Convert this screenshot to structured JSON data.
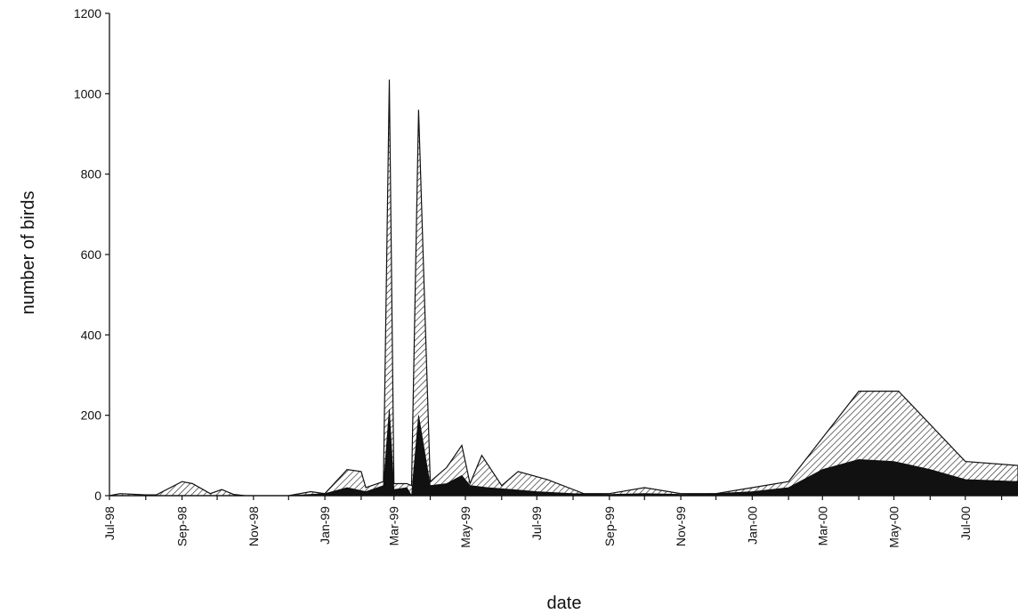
{
  "chart_data": {
    "type": "area",
    "title": "",
    "xlabel": "date",
    "ylabel": "number of birds",
    "ylim": [
      0,
      1200
    ],
    "y_ticks": [
      "0",
      "200",
      "400",
      "600",
      "800",
      "1000",
      "1200"
    ],
    "x_ticks": [
      "Jul-98",
      "Sep-98",
      "Nov-98",
      "Jan-99",
      "Mar-99",
      "May-99",
      "Jul-99",
      "Sep-99",
      "Nov-99",
      "Jan-00",
      "Mar-00",
      "May-00",
      "Jul-00"
    ],
    "x_range": [
      "1998-07-01",
      "2000-08-15"
    ],
    "stacked": true,
    "grid": false,
    "series": [
      {
        "fill": "black",
        "points": [
          [
            "1998-07-01",
            0
          ],
          [
            "1998-08-01",
            0
          ],
          [
            "1998-09-01",
            0
          ],
          [
            "1998-10-01",
            0
          ],
          [
            "1998-11-01",
            0
          ],
          [
            "1998-12-01",
            0
          ],
          [
            "1999-01-01",
            5
          ],
          [
            "1999-01-20",
            20
          ],
          [
            "1999-02-05",
            10
          ],
          [
            "1999-02-20",
            25
          ],
          [
            "1999-02-25",
            215
          ],
          [
            "1999-03-01",
            15
          ],
          [
            "1999-03-12",
            20
          ],
          [
            "1999-03-16",
            0
          ],
          [
            "1999-03-22",
            200
          ],
          [
            "1999-04-01",
            25
          ],
          [
            "1999-04-15",
            30
          ],
          [
            "1999-04-28",
            50
          ],
          [
            "1999-05-05",
            25
          ],
          [
            "1999-05-20",
            20
          ],
          [
            "1999-06-10",
            15
          ],
          [
            "1999-07-01",
            10
          ],
          [
            "1999-08-01",
            5
          ],
          [
            "1999-09-01",
            3
          ],
          [
            "1999-10-01",
            5
          ],
          [
            "1999-11-01",
            3
          ],
          [
            "1999-12-01",
            5
          ],
          [
            "2000-01-01",
            10
          ],
          [
            "2000-02-01",
            20
          ],
          [
            "2000-03-01",
            65
          ],
          [
            "2000-04-01",
            90
          ],
          [
            "2000-05-01",
            85
          ],
          [
            "2000-06-01",
            65
          ],
          [
            "2000-07-01",
            40
          ],
          [
            "2000-08-15",
            35
          ]
        ]
      },
      {
        "fill": "hatched",
        "points": [
          [
            "1998-07-01",
            0
          ],
          [
            "1998-07-10",
            5
          ],
          [
            "1998-08-01",
            2
          ],
          [
            "1998-08-10",
            2
          ],
          [
            "1998-09-01",
            35
          ],
          [
            "1998-09-10",
            30
          ],
          [
            "1998-09-25",
            5
          ],
          [
            "1998-10-05",
            15
          ],
          [
            "1998-10-15",
            3
          ],
          [
            "1998-10-25",
            0
          ],
          [
            "1998-11-01",
            0
          ],
          [
            "1998-12-01",
            0
          ],
          [
            "1998-12-20",
            10
          ],
          [
            "1999-01-01",
            5
          ],
          [
            "1999-01-20",
            65
          ],
          [
            "1999-02-01",
            60
          ],
          [
            "1999-02-05",
            20
          ],
          [
            "1999-02-20",
            35
          ],
          [
            "1999-02-25",
            1035
          ],
          [
            "1999-03-01",
            30
          ],
          [
            "1999-03-12",
            30
          ],
          [
            "1999-03-16",
            25
          ],
          [
            "1999-03-22",
            960
          ],
          [
            "1999-04-01",
            35
          ],
          [
            "1999-04-15",
            70
          ],
          [
            "1999-04-28",
            125
          ],
          [
            "1999-05-05",
            30
          ],
          [
            "1999-05-15",
            100
          ],
          [
            "1999-06-01",
            25
          ],
          [
            "1999-06-15",
            60
          ],
          [
            "1999-07-10",
            40
          ],
          [
            "1999-08-10",
            5
          ],
          [
            "1999-09-01",
            5
          ],
          [
            "1999-10-01",
            20
          ],
          [
            "1999-11-01",
            5
          ],
          [
            "1999-12-01",
            5
          ],
          [
            "2000-01-01",
            20
          ],
          [
            "2000-02-01",
            35
          ],
          [
            "2000-04-01",
            260
          ],
          [
            "2000-05-05",
            260
          ],
          [
            "2000-07-01",
            85
          ],
          [
            "2000-08-15",
            75
          ]
        ]
      }
    ]
  }
}
